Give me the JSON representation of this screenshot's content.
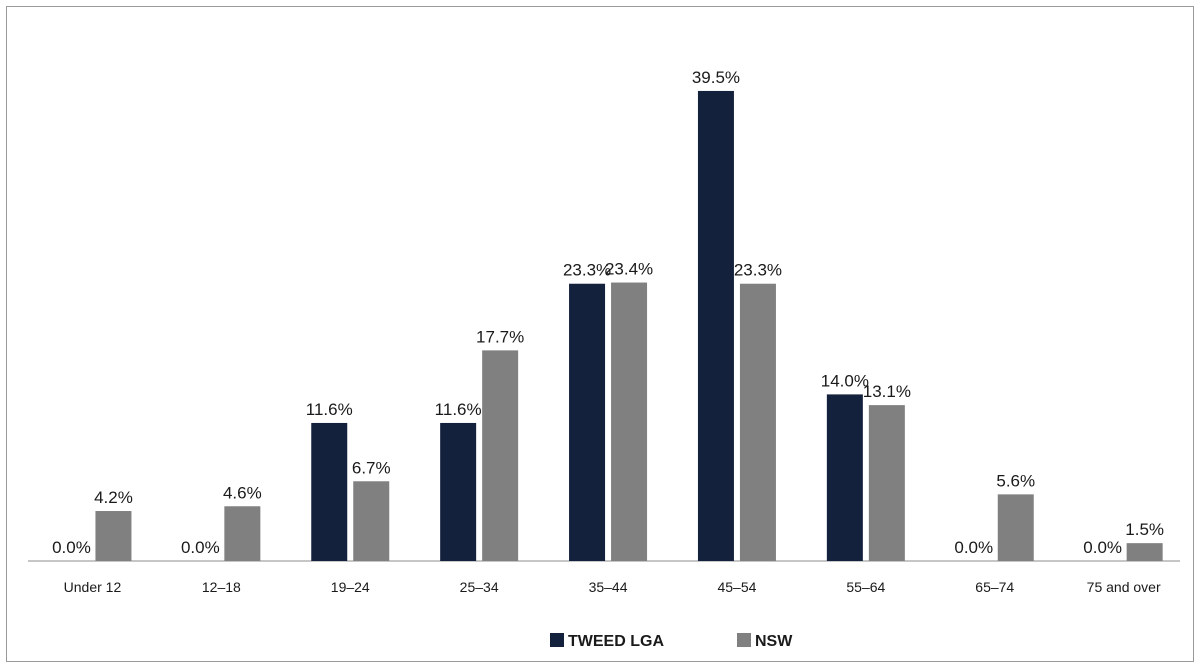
{
  "chart_data": {
    "type": "bar",
    "title": "",
    "xlabel": "",
    "ylabel": "",
    "ylim": [
      0,
      42
    ],
    "grid": false,
    "legend_position": "bottom",
    "categories": [
      "Under 12",
      "12–18",
      "19–24",
      "25–34",
      "35–44",
      "45–54",
      "55–64",
      "65–74",
      "75 and over"
    ],
    "series": [
      {
        "name": "TWEED LGA",
        "color": "#14213d",
        "values": [
          0.0,
          0.0,
          11.6,
          11.6,
          23.3,
          39.5,
          14.0,
          0.0,
          0.0
        ],
        "labels": [
          "0.0%",
          "0.0%",
          "11.6%",
          "11.6%",
          "23.3%",
          "39.5%",
          "14.0%",
          "0.0%",
          "0.0%"
        ]
      },
      {
        "name": "NSW",
        "color": "#808080",
        "values": [
          4.2,
          4.6,
          6.7,
          17.7,
          23.4,
          23.3,
          13.1,
          5.6,
          1.5
        ],
        "labels": [
          "4.2%",
          "4.6%",
          "6.7%",
          "17.7%",
          "23.4%",
          "23.3%",
          "13.1%",
          "5.6%",
          "1.5%"
        ]
      }
    ]
  }
}
